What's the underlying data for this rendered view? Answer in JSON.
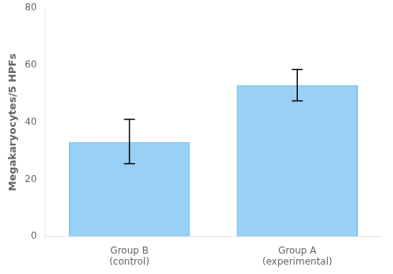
{
  "chart_data": {
    "type": "bar",
    "categories": [
      "Group B\n(control)",
      "Group A\n(experimental)"
    ],
    "values": [
      33.0,
      53.0
    ],
    "errors_upper": [
      8.0,
      5.5
    ],
    "errors_lower": [
      7.5,
      5.5
    ],
    "ylabel": "Megakaryocytes/5 HPFs",
    "ylim": [
      0,
      80
    ],
    "yticks": [
      0,
      20,
      40,
      60,
      80
    ],
    "grid": false
  }
}
